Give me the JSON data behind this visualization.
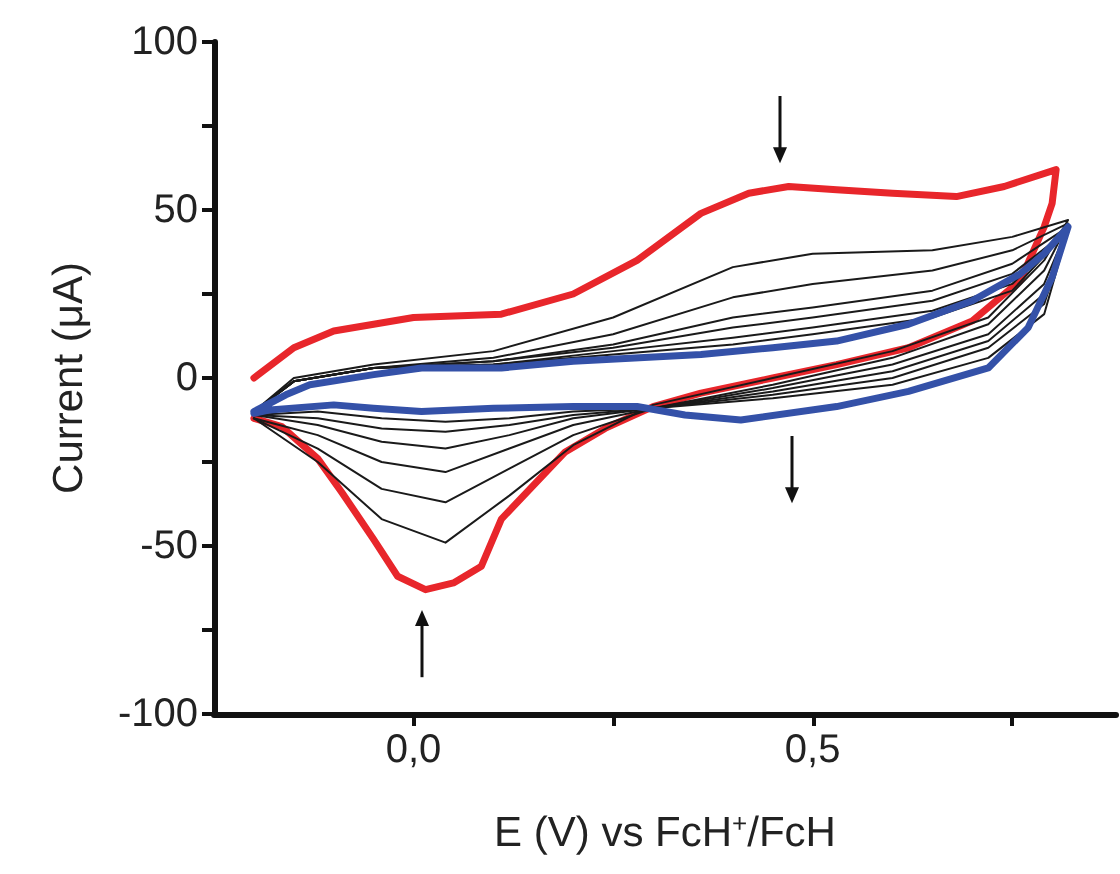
{
  "chart_data": {
    "type": "line",
    "xlabel": "E (V) vs FcH$^{+}$/FcH",
    "ylabel": "Current (μA)",
    "xlim": [
      -0.25,
      0.88
    ],
    "xticks": [
      {
        "value": 0,
        "label": "0,0"
      },
      {
        "value": 0.25,
        "label": null
      },
      {
        "value": 0.5,
        "label": "0,5"
      },
      {
        "value": 0.75,
        "label": null
      }
    ],
    "ylim": [
      -100,
      100
    ],
    "yticks": [
      -100,
      {
        "value": -75,
        "label": null
      },
      -50,
      {
        "value": -25,
        "label": null
      },
      0,
      {
        "value": 25,
        "label": null
      },
      50,
      {
        "value": 75,
        "label": null
      },
      100
    ],
    "grid": false,
    "marker": "none",
    "line_style": "solid",
    "series": [
      {
        "color": "#e8262b",
        "x": [
          -0.2,
          -0.15,
          -0.1,
          0.0,
          0.11,
          0.2,
          0.28,
          0.36,
          0.42,
          0.47,
          0.53,
          0.6,
          0.68,
          0.74,
          0.805,
          0.8,
          0.79,
          0.76,
          0.7,
          0.62,
          0.53,
          0.45,
          0.36,
          0.3,
          0.24,
          0.19,
          0.11,
          0.085,
          0.05,
          0.015,
          -0.02,
          -0.05,
          -0.09,
          -0.12,
          -0.165,
          -0.2
        ],
        "values": [
          0,
          9,
          14,
          18,
          19,
          25,
          35,
          49,
          55,
          57,
          56,
          55,
          54,
          57,
          62,
          52,
          45,
          29,
          17,
          9,
          4,
          0,
          -4.5,
          -8.5,
          -15,
          -22,
          -42,
          -56,
          -61,
          -63,
          -59,
          -48,
          -34,
          -24,
          -14.5,
          -12
        ]
      },
      {
        "color": "#1a1a1a",
        "x": [
          -0.2,
          -0.15,
          -0.05,
          0.1,
          0.25,
          0.4,
          0.5,
          0.65,
          0.75,
          0.82,
          0.79,
          0.72,
          0.6,
          0.45,
          0.3,
          0.2,
          0.12,
          0.04,
          -0.04,
          -0.12,
          -0.2
        ],
        "values": [
          -10,
          0,
          4,
          8,
          18,
          33,
          37,
          38,
          42,
          47,
          35,
          18,
          8,
          0,
          -8,
          -20,
          -35,
          -49,
          -42,
          -25,
          -12
        ]
      },
      {
        "color": "#1a1a1a",
        "x": [
          -0.2,
          -0.15,
          -0.05,
          0.1,
          0.25,
          0.4,
          0.5,
          0.65,
          0.75,
          0.82,
          0.79,
          0.72,
          0.6,
          0.45,
          0.3,
          0.2,
          0.12,
          0.04,
          -0.04,
          -0.12,
          -0.2
        ],
        "values": [
          -10,
          -1,
          3,
          6,
          13,
          24,
          28,
          32,
          38,
          46,
          32,
          16,
          6,
          -2,
          -9,
          -17,
          -27,
          -37,
          -33,
          -21,
          -12
        ]
      },
      {
        "color": "#1a1a1a",
        "x": [
          -0.2,
          -0.15,
          -0.05,
          0.1,
          0.25,
          0.4,
          0.5,
          0.65,
          0.75,
          0.82,
          0.79,
          0.72,
          0.6,
          0.45,
          0.3,
          0.2,
          0.12,
          0.04,
          -0.04,
          -0.12,
          -0.2
        ],
        "values": [
          -10,
          -1,
          3,
          5,
          10,
          18,
          21,
          26,
          34,
          45,
          28,
          13,
          4,
          -3,
          -9,
          -14,
          -21,
          -28,
          -25,
          -17,
          -12
        ]
      },
      {
        "color": "#1a1a1a",
        "x": [
          -0.2,
          -0.15,
          -0.05,
          0.1,
          0.25,
          0.4,
          0.5,
          0.65,
          0.75,
          0.82,
          0.79,
          0.72,
          0.6,
          0.45,
          0.3,
          0.2,
          0.12,
          0.04,
          -0.04,
          -0.12,
          -0.2
        ],
        "values": [
          -10,
          -1,
          3,
          5,
          9,
          15,
          18,
          23,
          31,
          44,
          25,
          11,
          2,
          -4,
          -9,
          -12,
          -17,
          -21,
          -19,
          -14,
          -11
        ]
      },
      {
        "color": "#1a1a1a",
        "x": [
          -0.2,
          -0.15,
          -0.05,
          0.1,
          0.25,
          0.4,
          0.5,
          0.65,
          0.75,
          0.82,
          0.79,
          0.72,
          0.6,
          0.45,
          0.3,
          0.2,
          0.12,
          0.04,
          -0.04,
          -0.12,
          -0.2
        ],
        "values": [
          -10,
          -1,
          3,
          4,
          8,
          12,
          15,
          20,
          28,
          44,
          22,
          9,
          0,
          -5,
          -9,
          -11,
          -14,
          -16,
          -15,
          -12,
          -11
        ]
      },
      {
        "color": "#1a1a1a",
        "x": [
          -0.2,
          -0.15,
          -0.05,
          0.1,
          0.25,
          0.4,
          0.5,
          0.65,
          0.75,
          0.82,
          0.79,
          0.72,
          0.6,
          0.45,
          0.3,
          0.2,
          0.12,
          0.04,
          -0.04,
          -0.12,
          -0.2
        ],
        "values": [
          -10,
          -1,
          3,
          4,
          7,
          10,
          13,
          18,
          26,
          44,
          19,
          6,
          -2,
          -6,
          -9,
          -10,
          -12,
          -13,
          -12,
          -10,
          -11
        ]
      },
      {
        "color": "#3451a8",
        "x": [
          -0.2,
          -0.16,
          -0.13,
          -0.05,
          0.01,
          0.11,
          0.2,
          0.36,
          0.45,
          0.53,
          0.62,
          0.7,
          0.76,
          0.79,
          0.82,
          0.8,
          0.77,
          0.72,
          0.62,
          0.53,
          0.41,
          0.34,
          0.28,
          0.2,
          0.1,
          0.01,
          -0.05,
          -0.1,
          -0.18,
          -0.2
        ],
        "values": [
          -10,
          -5,
          -2,
          1,
          3,
          3,
          5,
          7,
          9,
          11,
          16,
          23,
          31,
          37,
          45,
          30,
          15,
          3,
          -4,
          -8.5,
          -12.5,
          -11,
          -8.5,
          -8.5,
          -9,
          -10,
          -9,
          -8,
          -9.5,
          -10.5
        ]
      }
    ]
  }
}
